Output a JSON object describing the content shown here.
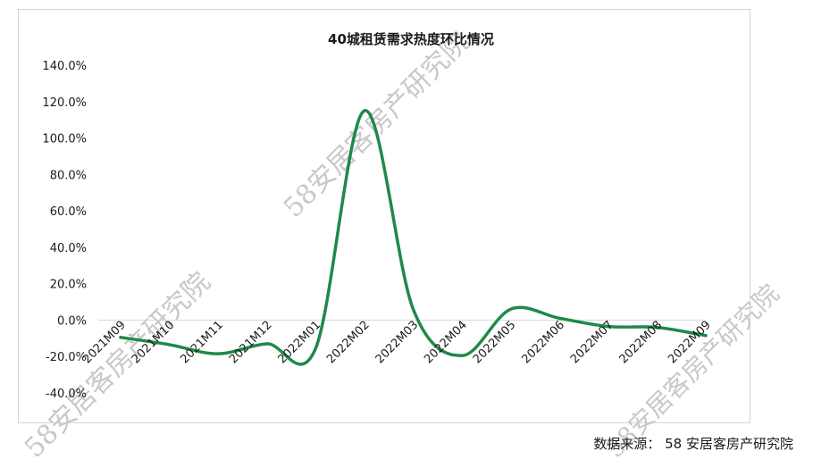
{
  "chart_data": {
    "type": "line",
    "title": "40城租赁需求热度环比情况",
    "categories": [
      "2021M09",
      "2021M10",
      "2021M11",
      "2021M12",
      "2022M01",
      "2022M02",
      "2022M03",
      "2022M04",
      "2022M05",
      "2022M06",
      "2022M07",
      "2022M08",
      "2022M09"
    ],
    "values": [
      -9.5,
      -13.5,
      -18.5,
      -13.0,
      -15.5,
      115.0,
      6.0,
      -19.5,
      6.0,
      1.0,
      -3.5,
      -4.0,
      -8.5
    ],
    "ylim": [
      -40,
      140
    ],
    "yticks": [
      "140.0%",
      "120.0%",
      "100.0%",
      "80.0%",
      "60.0%",
      "40.0%",
      "20.0%",
      "0.0%",
      "-20.0%",
      "-40.0%"
    ],
    "line_color": "#1e8a48",
    "grid": false,
    "legend": "none"
  },
  "source_text": "数据来源：  58 安居客房产研究院",
  "watermark_text": "58安居客房产研究院"
}
